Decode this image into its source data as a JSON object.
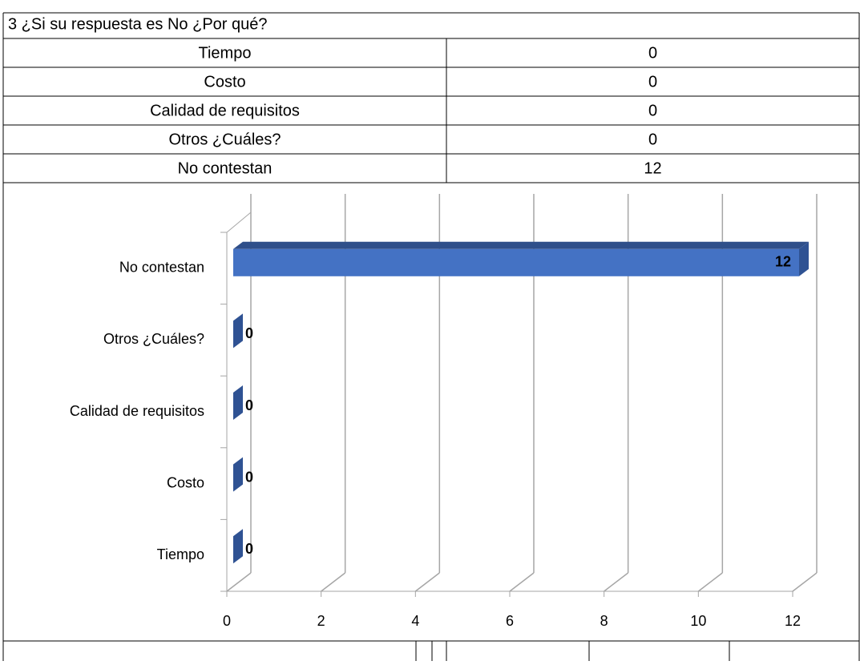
{
  "table": {
    "title": "3 ¿Si su respuesta es No ¿Por qué?"
  },
  "chart_data": {
    "type": "bar3d",
    "orientation": "horizontal",
    "categories": [
      "Tiempo",
      "Costo",
      "Calidad de requisitos",
      "Otros  ¿Cuáles?",
      "No contestan"
    ],
    "values": [
      0,
      0,
      0,
      0,
      12
    ],
    "color": "#4472c4",
    "xlim": [
      0,
      12
    ],
    "xticks": [
      0,
      2,
      4,
      6,
      8,
      10,
      12
    ],
    "grid": true
  }
}
